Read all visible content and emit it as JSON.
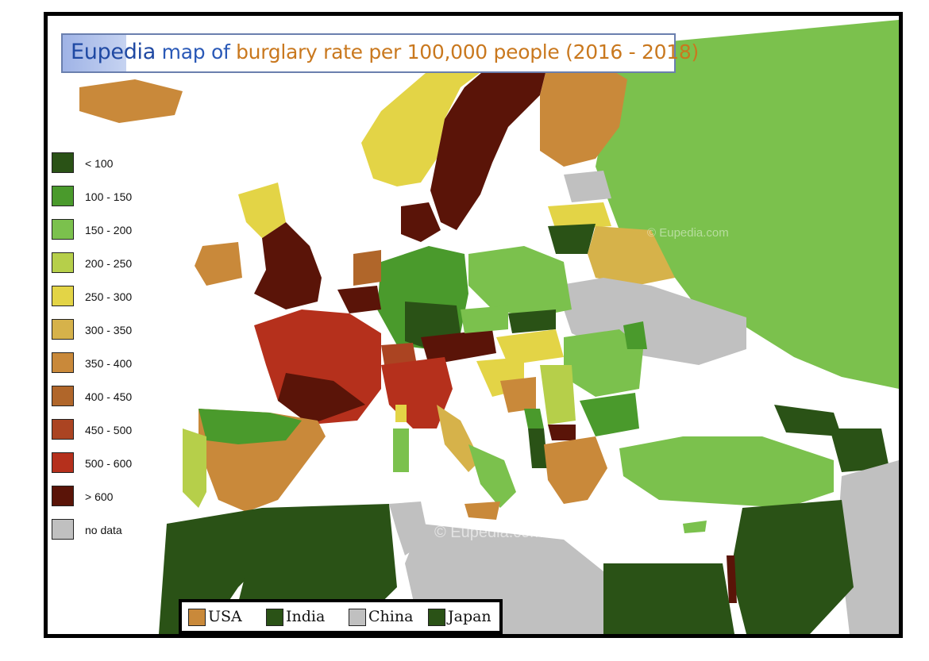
{
  "title": {
    "brand": "Eupedia",
    "middle": " map of ",
    "rest": "burglary rate per 100,000 people (2016 - 2018)"
  },
  "legend": [
    {
      "label": "< 100",
      "color": "#2a5216"
    },
    {
      "label": "100 - 150",
      "color": "#4a9a2c"
    },
    {
      "label": "150 - 200",
      "color": "#7bc14d"
    },
    {
      "label": "200 - 250",
      "color": "#b6cf4a"
    },
    {
      "label": "250 - 300",
      "color": "#e3d446"
    },
    {
      "label": "300 - 350",
      "color": "#d6b24a"
    },
    {
      "label": "350 - 400",
      "color": "#c9893a"
    },
    {
      "label": "400 - 450",
      "color": "#b0662a"
    },
    {
      "label": "450 - 500",
      "color": "#ab4422"
    },
    {
      "label": "500 - 600",
      "color": "#b5301c"
    },
    {
      "label": "> 600",
      "color": "#5a1408"
    },
    {
      "label": "no data",
      "color": "#c0c0c0"
    }
  ],
  "comparison": [
    {
      "label": "USA",
      "color": "#c9893a"
    },
    {
      "label": "India",
      "color": "#2a5216"
    },
    {
      "label": "China",
      "color": "#c0c0c0"
    },
    {
      "label": "Japan",
      "color": "#2a5216"
    }
  ],
  "watermarks": {
    "main": "©  Eupedia.com",
    "secondary": "© Eupedia.com"
  }
}
